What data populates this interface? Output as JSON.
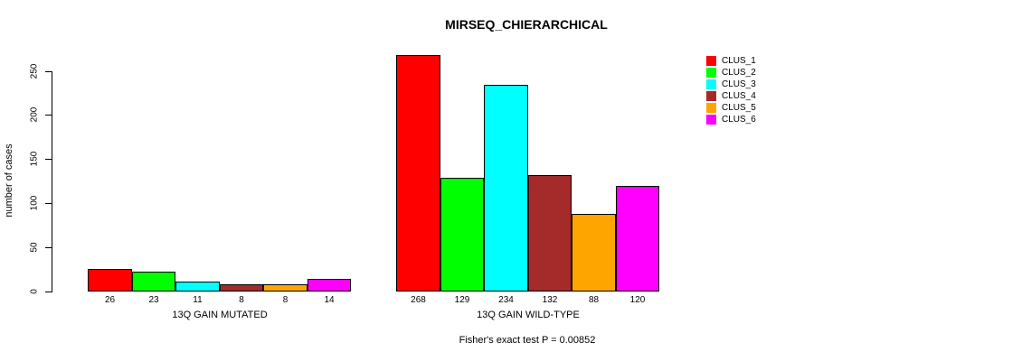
{
  "chart_data": {
    "type": "bar",
    "title": "MIRSEQ_CHIERARCHICAL",
    "ylabel": "number of cases",
    "ylim": [
      0,
      275
    ],
    "yticks": [
      0,
      50,
      100,
      150,
      200,
      250
    ],
    "grid": false,
    "legend_position": "right-outside",
    "footnote": "Fisher's exact test P = 0.00852",
    "series_names": [
      "CLUS_1",
      "CLUS_2",
      "CLUS_3",
      "CLUS_4",
      "CLUS_5",
      "CLUS_6"
    ],
    "series_colors": [
      "#FF0000",
      "#00FF00",
      "#00FFFF",
      "#A52A2A",
      "#FFA500",
      "#FF00FF"
    ],
    "groups": [
      {
        "label": "13Q GAIN MUTATED",
        "values": [
          26,
          23,
          11,
          8,
          8,
          14
        ]
      },
      {
        "label": "13Q GAIN WILD-TYPE",
        "values": [
          268,
          129,
          234,
          132,
          88,
          120
        ]
      }
    ]
  }
}
